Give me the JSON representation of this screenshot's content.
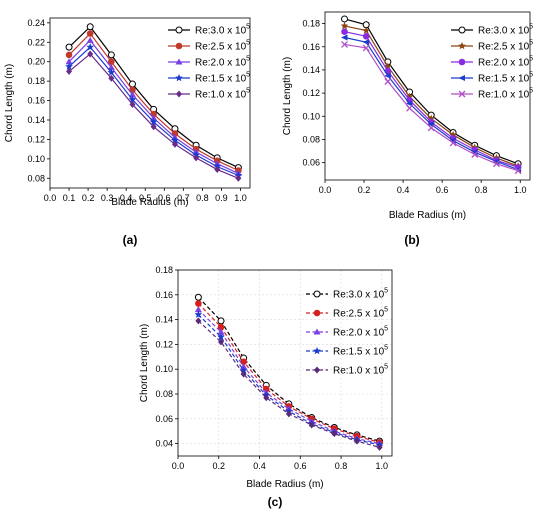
{
  "chart_data": [
    {
      "panel_label": "(a)",
      "type": "line",
      "line_style": "solid",
      "xlabel": "Blade Radius (m)",
      "ylabel": "Chord Length (m)",
      "xlim": [
        0.0,
        1.05
      ],
      "ylim": [
        0.07,
        0.245
      ],
      "xticks": [
        "0.0",
        "0.1",
        "0.2",
        "0.3",
        "0.4",
        "0.5",
        "0.6",
        "0.7",
        "0.8",
        "0.9",
        "1.0"
      ],
      "yticks": [
        "0.08",
        "0.10",
        "0.12",
        "0.14",
        "0.16",
        "0.18",
        "0.20",
        "0.22",
        "0.24"
      ],
      "grid": false,
      "legend_position": "top-right",
      "x": [
        0.1,
        0.211,
        0.322,
        0.433,
        0.544,
        0.656,
        0.767,
        0.878,
        0.989
      ],
      "series": [
        {
          "name": "Re:3.0 x 10",
          "exp": "5",
          "color": "#000000",
          "marker": "circle-open",
          "values": [
            0.215,
            0.236,
            0.207,
            0.177,
            0.151,
            0.131,
            0.114,
            0.101,
            0.091
          ]
        },
        {
          "name": "Re:2.5 x 10",
          "exp": "5",
          "color": "#c0392b",
          "marker": "circle",
          "values": [
            0.207,
            0.229,
            0.2,
            0.171,
            0.146,
            0.126,
            0.11,
            0.098,
            0.088
          ]
        },
        {
          "name": "Re:2.0 x 10",
          "exp": "5",
          "color": "#7b3fe4",
          "marker": "triangle",
          "values": [
            0.2,
            0.222,
            0.194,
            0.166,
            0.142,
            0.122,
            0.107,
            0.095,
            0.085
          ]
        },
        {
          "name": "Re:1.5 x 10",
          "exp": "5",
          "color": "#1a3ccc",
          "marker": "star",
          "values": [
            0.195,
            0.215,
            0.189,
            0.161,
            0.138,
            0.119,
            0.104,
            0.092,
            0.083
          ]
        },
        {
          "name": "Re:1.0 x 10",
          "exp": "5",
          "color": "#6a2a8a",
          "marker": "diamond",
          "values": [
            0.19,
            0.208,
            0.183,
            0.156,
            0.133,
            0.115,
            0.101,
            0.089,
            0.08
          ]
        }
      ]
    },
    {
      "panel_label": "(b)",
      "type": "line",
      "line_style": "solid",
      "xlabel": "Blade  Radius (m)",
      "ylabel": "Chord Length (m)",
      "xlim": [
        0.0,
        1.05
      ],
      "ylim": [
        0.045,
        0.19
      ],
      "xticks": [
        "0.0",
        "0.2",
        "0.4",
        "0.6",
        "0.8",
        "1.0"
      ],
      "yticks": [
        "0.06",
        "0.08",
        "0.10",
        "0.12",
        "0.14",
        "0.16",
        "0.18"
      ],
      "grid": false,
      "legend_position": "top-right",
      "x": [
        0.1,
        0.211,
        0.322,
        0.433,
        0.544,
        0.656,
        0.767,
        0.878,
        0.989
      ],
      "series": [
        {
          "name": "Re:3.0 x 10",
          "exp": "5",
          "color": "#000000",
          "marker": "circle-open",
          "values": [
            0.184,
            0.179,
            0.147,
            0.121,
            0.101,
            0.086,
            0.075,
            0.066,
            0.059
          ]
        },
        {
          "name": "Re:2.5 x 10",
          "exp": "5",
          "color": "#8b4513",
          "marker": "star",
          "values": [
            0.178,
            0.174,
            0.143,
            0.117,
            0.098,
            0.084,
            0.073,
            0.064,
            0.057
          ]
        },
        {
          "name": "Re:2.0 x 10",
          "exp": "5",
          "color": "#8a2be2",
          "marker": "circle",
          "values": [
            0.173,
            0.169,
            0.139,
            0.114,
            0.095,
            0.081,
            0.071,
            0.062,
            0.056
          ]
        },
        {
          "name": "Re:1.5 x 10",
          "exp": "5",
          "color": "#1a3ccc",
          "marker": "triangle-left",
          "values": [
            0.168,
            0.164,
            0.135,
            0.111,
            0.093,
            0.079,
            0.069,
            0.061,
            0.054
          ]
        },
        {
          "name": "Re:1.0 x 10",
          "exp": "5",
          "color": "#b04fc8",
          "marker": "x",
          "values": [
            0.162,
            0.159,
            0.13,
            0.107,
            0.09,
            0.077,
            0.067,
            0.059,
            0.053
          ]
        }
      ]
    },
    {
      "panel_label": "(c)",
      "type": "line",
      "line_style": "dashed",
      "xlabel": "Blade Radius (m)",
      "ylabel": "Chord Length (m)",
      "xlim": [
        0.0,
        1.05
      ],
      "ylim": [
        0.03,
        0.18
      ],
      "xticks": [
        "0.0",
        "0.2",
        "0.4",
        "0.6",
        "0.8",
        "1.0"
      ],
      "yticks": [
        "0.04",
        "0.06",
        "0.08",
        "0.10",
        "0.12",
        "0.14",
        "0.16",
        "0.18"
      ],
      "grid": true,
      "legend_position": "top-right",
      "x": [
        0.1,
        0.211,
        0.322,
        0.433,
        0.544,
        0.656,
        0.767,
        0.878,
        0.989
      ],
      "series": [
        {
          "name": "Re:3.0 x 10",
          "exp": "5",
          "color": "#000000",
          "marker": "circle-open",
          "values": [
            0.158,
            0.139,
            0.109,
            0.087,
            0.072,
            0.061,
            0.053,
            0.047,
            0.042
          ]
        },
        {
          "name": "Re:2.5 x 10",
          "exp": "5",
          "color": "#d62020",
          "marker": "circle",
          "values": [
            0.153,
            0.134,
            0.106,
            0.084,
            0.07,
            0.06,
            0.052,
            0.046,
            0.041
          ]
        },
        {
          "name": "Re:2.0 x 10",
          "exp": "5",
          "color": "#7b3fe4",
          "marker": "triangle",
          "values": [
            0.148,
            0.13,
            0.102,
            0.081,
            0.068,
            0.058,
            0.05,
            0.044,
            0.04
          ]
        },
        {
          "name": "Re:1.5 x 10",
          "exp": "5",
          "color": "#1a3ccc",
          "marker": "star",
          "values": [
            0.144,
            0.126,
            0.099,
            0.079,
            0.066,
            0.056,
            0.049,
            0.043,
            0.039
          ]
        },
        {
          "name": "Re:1.0 x 10",
          "exp": "5",
          "color": "#5a2a7a",
          "marker": "diamond",
          "values": [
            0.139,
            0.122,
            0.096,
            0.077,
            0.064,
            0.055,
            0.048,
            0.042,
            0.037
          ]
        }
      ]
    }
  ]
}
